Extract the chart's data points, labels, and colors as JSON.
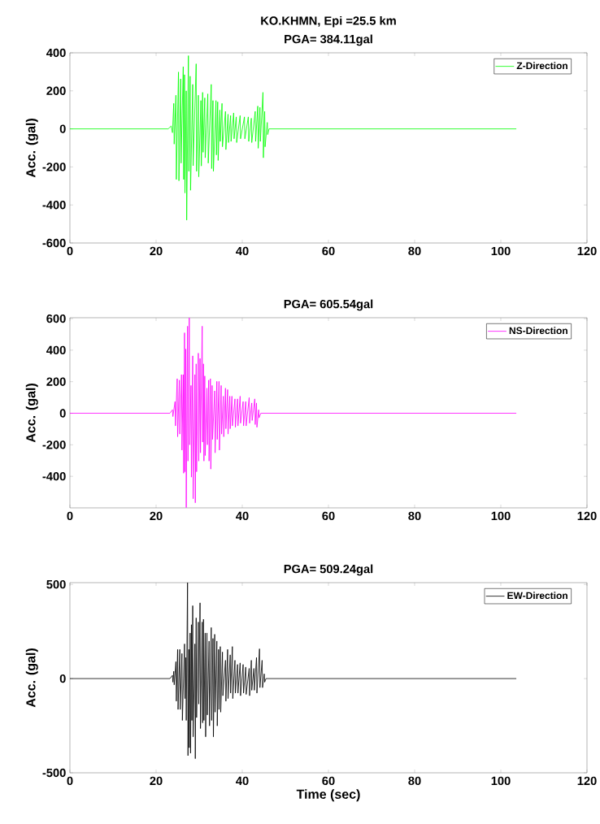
{
  "chart_data": [
    {
      "type": "line",
      "title": "KO.KHMN, Epi =25.5 km",
      "subtitle": "PGA= 384.11gal",
      "ylabel": "Acc. (gal)",
      "xlim": [
        0,
        120
      ],
      "xticks": [
        0,
        20,
        40,
        60,
        80,
        100,
        120
      ],
      "ylim": [
        -600,
        400
      ],
      "yticks": [
        -600,
        -400,
        -200,
        0,
        200,
        400
      ],
      "legend": "top right",
      "marker": "none",
      "x": [
        0,
        22.8,
        23.5,
        23.8,
        24.1,
        24.2,
        24.6,
        24.7,
        25.2,
        25.3,
        25.7,
        25.8,
        26.3,
        26.4,
        26.6,
        26.7,
        27.0,
        27.1,
        27.5,
        27.6,
        27.9,
        28.0,
        28.5,
        28.6,
        29.3,
        29.4,
        29.8,
        29.9,
        30.4,
        30.5,
        30.8,
        30.9,
        31.3,
        31.4,
        32.0,
        32.1,
        32.8,
        32.9,
        33.2,
        33.3,
        33.9,
        34.0,
        34.3,
        34.4,
        34.8,
        34.9,
        35.3,
        35.4,
        36.1,
        36.2,
        36.7,
        36.8,
        37.3,
        37.4,
        38.0,
        38.1,
        38.6,
        38.7,
        39.5,
        39.6,
        40.5,
        40.6,
        41.4,
        41.5,
        42.1,
        42.2,
        43.0,
        43.1,
        43.6,
        43.7,
        44.1,
        44.2,
        44.8,
        44.9,
        45.2,
        45.3,
        45.8,
        45.9,
        46.2,
        103.6
      ],
      "series": [
        {
          "name": "Z-Direction",
          "color": "#00ff00",
          "values": [
            0,
            0,
            15,
            -20,
            134,
            -80,
            177,
            -266,
            299,
            -273,
            263,
            -180,
            327,
            -266,
            285,
            -337,
            200,
            -480,
            385,
            -223,
            277,
            -323,
            234,
            -194,
            342,
            -223,
            177,
            -252,
            149,
            -195,
            192,
            -123,
            163,
            -152,
            184,
            -180,
            234,
            -209,
            149,
            -223,
            149,
            -137,
            142,
            -166,
            99,
            -66,
            134,
            -94,
            92,
            -109,
            77,
            -72,
            70,
            -66,
            84,
            -52,
            63,
            -72,
            70,
            -52,
            63,
            -52,
            63,
            -66,
            56,
            -72,
            92,
            -66,
            120,
            -102,
            113,
            -66,
            192,
            -152,
            92,
            -94,
            34,
            -30,
            0,
            0
          ]
        }
      ]
    },
    {
      "type": "line",
      "title": "PGA= 605.54gal",
      "ylabel": "Acc. (gal)",
      "xlim": [
        0,
        120
      ],
      "xticks": [
        0,
        20,
        40,
        60,
        80,
        100,
        120
      ],
      "ylim": [
        -600,
        605.54
      ],
      "yticks": [
        -400,
        -200,
        0,
        200,
        400,
        600
      ],
      "legend": "top right",
      "marker": "none",
      "x": [
        0,
        23.2,
        23.8,
        23.9,
        24.4,
        24.5,
        24.9,
        25.0,
        25.4,
        25.5,
        25.9,
        26.0,
        26.3,
        26.4,
        26.6,
        26.7,
        26.9,
        27.0,
        27.3,
        27.4,
        27.7,
        27.8,
        28.1,
        28.2,
        28.5,
        28.6,
        29.0,
        29.1,
        29.3,
        29.4,
        29.8,
        29.9,
        30.2,
        30.3,
        30.7,
        30.8,
        31.0,
        31.1,
        31.3,
        31.4,
        31.8,
        31.9,
        32.2,
        32.3,
        32.6,
        32.7,
        33.0,
        33.1,
        33.6,
        33.7,
        34.1,
        34.2,
        34.6,
        34.7,
        35.1,
        35.2,
        35.6,
        35.7,
        36.1,
        36.2,
        36.6,
        36.7,
        37.1,
        37.2,
        37.6,
        37.7,
        38.3,
        38.4,
        38.9,
        39.0,
        39.5,
        39.6,
        40.2,
        40.3,
        40.8,
        40.9,
        41.6,
        41.7,
        42.2,
        42.3,
        42.9,
        43.0,
        43.3,
        43.4,
        43.8,
        43.9,
        44.3,
        103.6
      ],
      "series": [
        {
          "name": "NS-Direction",
          "color": "#ff00ff",
          "values": [
            0,
            0,
            22,
            -21,
            74,
            -80,
            219,
            -149,
            210,
            -132,
            245,
            -234,
            245,
            -380,
            510,
            -371,
            407,
            -598,
            552,
            -303,
            605,
            -200,
            176,
            -405,
            364,
            -542,
            245,
            -568,
            313,
            -371,
            381,
            -303,
            347,
            -251,
            552,
            -183,
            313,
            -303,
            236,
            -268,
            159,
            -200,
            210,
            -303,
            219,
            -354,
            176,
            -166,
            142,
            -251,
            202,
            -166,
            202,
            -234,
            176,
            -132,
            108,
            -149,
            159,
            -98,
            150,
            -132,
            108,
            -98,
            108,
            -80,
            91,
            -89,
            91,
            -80,
            108,
            -63,
            74,
            -80,
            74,
            -80,
            99,
            -63,
            65,
            -46,
            91,
            -72,
            65,
            -89,
            22,
            -29,
            0,
            0
          ]
        }
      ]
    },
    {
      "type": "line",
      "title": "PGA= 509.24gal",
      "xlabel": "Time (sec)",
      "ylabel": "Acc. (gal)",
      "xlim": [
        0,
        120
      ],
      "xticks": [
        0,
        20,
        40,
        60,
        80,
        100,
        120
      ],
      "ylim": [
        -500,
        509.24
      ],
      "yticks": [
        -500,
        0,
        500
      ],
      "legend": "top right",
      "marker": "none",
      "x": [
        0,
        23.2,
        23.8,
        23.9,
        24.1,
        24.2,
        24.6,
        24.7,
        25.0,
        25.1,
        25.5,
        25.6,
        26.0,
        26.1,
        26.6,
        26.7,
        26.9,
        27.0,
        27.3,
        27.4,
        27.6,
        27.7,
        27.9,
        28.0,
        28.2,
        28.3,
        28.5,
        28.6,
        29.0,
        29.1,
        29.3,
        29.4,
        29.8,
        29.9,
        30.2,
        30.3,
        30.7,
        30.8,
        31.0,
        31.1,
        31.4,
        31.5,
        31.8,
        31.9,
        32.3,
        32.4,
        32.8,
        32.9,
        33.2,
        33.3,
        33.6,
        33.7,
        34.1,
        34.2,
        34.5,
        34.6,
        34.9,
        35.0,
        35.4,
        35.5,
        36.1,
        36.2,
        36.6,
        36.7,
        37.2,
        37.3,
        37.7,
        37.8,
        38.3,
        38.4,
        38.9,
        39.0,
        39.5,
        39.6,
        40.2,
        40.3,
        40.8,
        40.9,
        41.6,
        41.7,
        42.1,
        42.2,
        42.7,
        42.8,
        43.3,
        43.4,
        44.0,
        44.1,
        44.6,
        44.7,
        45.1,
        45.2,
        45.5,
        103.6
      ],
      "series": [
        {
          "name": "EW-Direction",
          "color": "#000000",
          "values": [
            0,
            0,
            17,
            -19,
            39,
            -33,
            90,
            -120,
            155,
            -164,
            155,
            -164,
            133,
            -222,
            184,
            -106,
            112,
            -222,
            509,
            -409,
            155,
            -367,
            242,
            -396,
            286,
            -222,
            387,
            -309,
            184,
            -425,
            322,
            -207,
            300,
            -135,
            402,
            -265,
            300,
            -235,
            315,
            -222,
            242,
            -309,
            242,
            -193,
            199,
            -251,
            271,
            -222,
            213,
            -309,
            235,
            -178,
            199,
            -251,
            155,
            -164,
            170,
            -178,
            141,
            -91,
            97,
            -120,
            155,
            -106,
            126,
            -77,
            170,
            -106,
            97,
            -77,
            75,
            -77,
            83,
            -91,
            75,
            -77,
            61,
            -84,
            54,
            -91,
            97,
            -62,
            54,
            -62,
            112,
            -77,
            158,
            -48,
            97,
            -48,
            25,
            -19,
            0,
            0
          ]
        }
      ]
    }
  ]
}
